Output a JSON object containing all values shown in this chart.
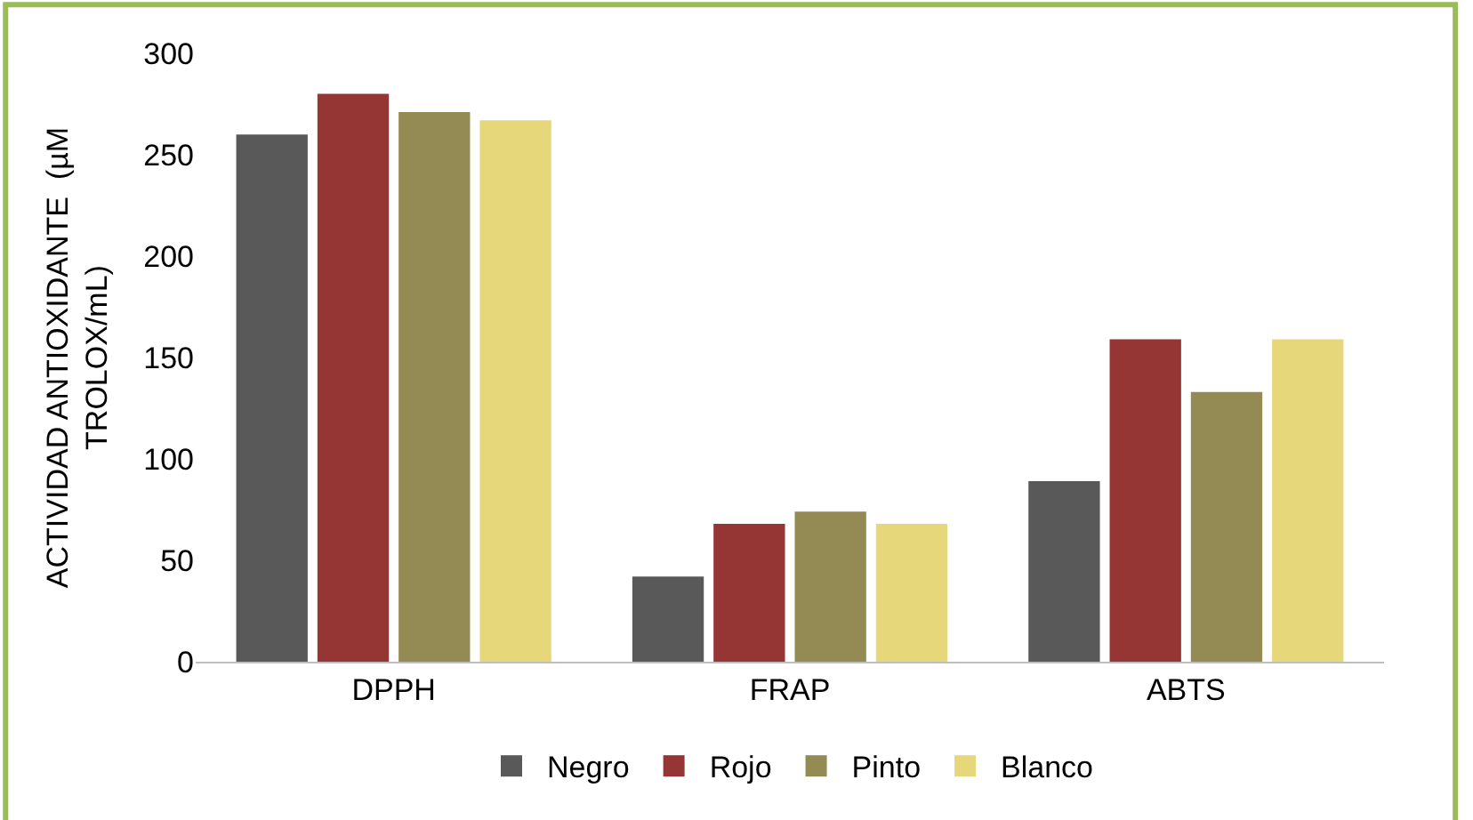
{
  "chart_data": {
    "type": "bar",
    "ylabel": "ACTIVIDAD ANTIOXIDANTE  (µM\nTROLOX/mL)",
    "categories": [
      "DPPH",
      "FRAP",
      "ABTS"
    ],
    "series": [
      {
        "name": "Negro",
        "color": "#595959",
        "values": [
          260,
          42,
          89
        ]
      },
      {
        "name": "Rojo",
        "color": "#963634",
        "values": [
          280,
          68,
          159
        ]
      },
      {
        "name": "Pinto",
        "color": "#948a54",
        "values": [
          271,
          74,
          133
        ]
      },
      {
        "name": "Blanco",
        "color": "#e6d87a",
        "values": [
          267,
          68,
          159
        ]
      }
    ],
    "ylim": [
      0,
      300
    ],
    "yticks": [
      0,
      50,
      100,
      150,
      200,
      250,
      300
    ],
    "legend": "bottom"
  }
}
